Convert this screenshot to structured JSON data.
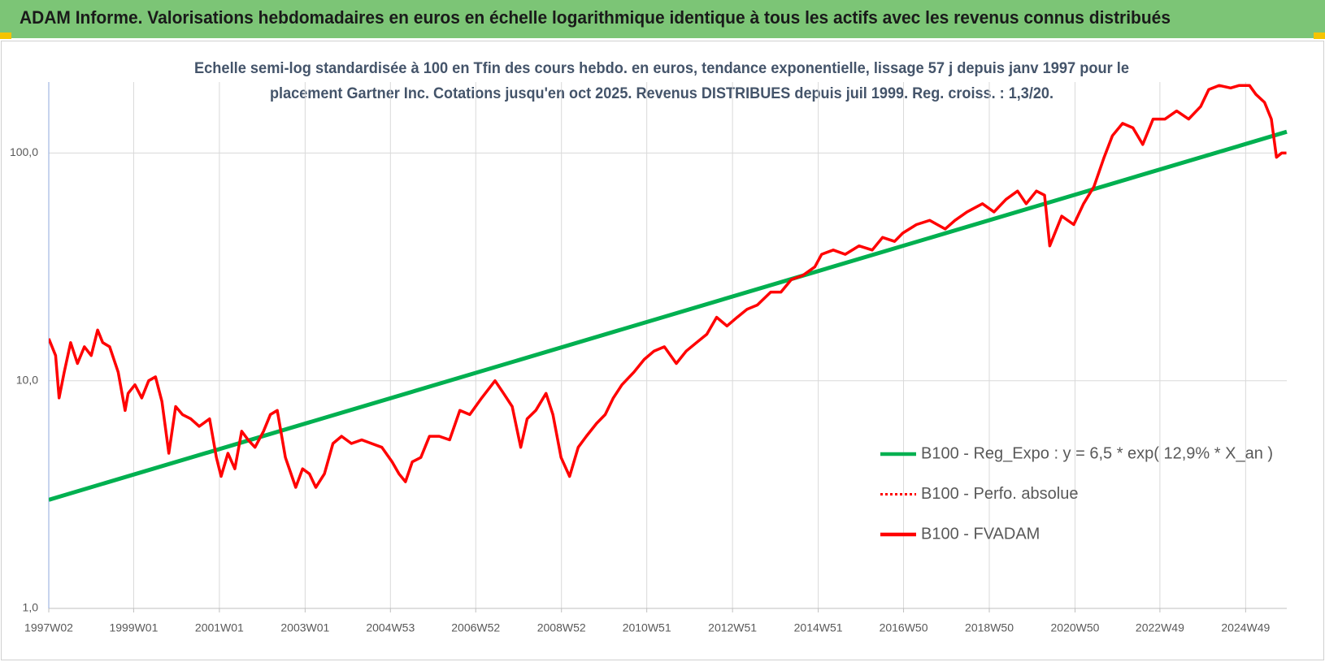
{
  "chart_data": {
    "type": "line",
    "title": "ADAM Informe. Valorisations hebdomadaires en euros en échelle logarithmique identique à tous les actifs avec les revenus connus distribués",
    "subtitle": [
      "Echelle semi-log standardisée à 100 en Tfin des cours hebdo. en euros, tendance exponentielle, lissage 57 j depuis janv 1997 pour le",
      "placement Gartner Inc.  Cotations jusqu'en oct 2025.  Revenus DISTRIBUES depuis juil 1999.  Reg. croiss. : 1,3/20."
    ],
    "yscale": "log",
    "ylim": [
      1,
      205
    ],
    "yticks": [
      {
        "value": 1,
        "label": "1,0"
      },
      {
        "value": 10,
        "label": "10,0"
      },
      {
        "value": 100,
        "label": "100,0"
      }
    ],
    "xlim": [
      1997.02,
      2025.9
    ],
    "xticks": [
      {
        "value": 1997.02,
        "label": "1997W02"
      },
      {
        "value": 1999.0,
        "label": "1999W01"
      },
      {
        "value": 2001.0,
        "label": "2001W01"
      },
      {
        "value": 2003.0,
        "label": "2003W01"
      },
      {
        "value": 2004.99,
        "label": "2004W53"
      },
      {
        "value": 2006.98,
        "label": "2006W52"
      },
      {
        "value": 2008.98,
        "label": "2008W52"
      },
      {
        "value": 2010.97,
        "label": "2010W51"
      },
      {
        "value": 2012.97,
        "label": "2012W51"
      },
      {
        "value": 2014.97,
        "label": "2014W51"
      },
      {
        "value": 2016.96,
        "label": "2016W50"
      },
      {
        "value": 2018.96,
        "label": "2018W50"
      },
      {
        "value": 2020.96,
        "label": "2020W50"
      },
      {
        "value": 2022.94,
        "label": "2022W49"
      },
      {
        "value": 2024.94,
        "label": "2024W49"
      }
    ],
    "grid": true,
    "legend": "lower right",
    "series": [
      {
        "name": "B100 - Reg_Expo : y = 6,5 * exp( 12,9% *  X_an )",
        "color": "#00b050",
        "style": "solid",
        "x": [
          1997.02,
          2025.9
        ],
        "values": [
          3.0,
          124
        ]
      },
      {
        "name": "B100 - Perfo. absolue",
        "color": "#ff0000",
        "style": "dotted"
      },
      {
        "name": "B100 - FVADAM",
        "color": "#ff0000",
        "style": "solid",
        "x": [
          1997.02,
          1997.18,
          1997.26,
          1997.38,
          1997.53,
          1997.69,
          1997.85,
          1998.01,
          1998.16,
          1998.28,
          1998.44,
          1998.64,
          1998.8,
          1998.87,
          1999.03,
          1999.19,
          1999.35,
          1999.51,
          1999.66,
          1999.82,
          1999.98,
          2000.14,
          2000.33,
          2000.53,
          2000.77,
          2000.93,
          2001.04,
          2001.2,
          2001.36,
          2001.52,
          2001.67,
          2001.83,
          2002.03,
          2002.19,
          2002.35,
          2002.54,
          2002.78,
          2002.94,
          2003.1,
          2003.25,
          2003.45,
          2003.65,
          2003.85,
          2004.08,
          2004.32,
          2004.55,
          2004.79,
          2005.03,
          2005.19,
          2005.34,
          2005.5,
          2005.7,
          2005.9,
          2006.13,
          2006.37,
          2006.61,
          2006.84,
          2007.12,
          2007.43,
          2007.63,
          2007.83,
          2008.03,
          2008.18,
          2008.38,
          2008.62,
          2008.78,
          2008.97,
          2009.17,
          2009.37,
          2009.56,
          2009.8,
          2010.0,
          2010.19,
          2010.39,
          2010.67,
          2010.91,
          2011.14,
          2011.38,
          2011.66,
          2011.89,
          2012.13,
          2012.37,
          2012.6,
          2012.84,
          2013.08,
          2013.31,
          2013.55,
          2013.86,
          2014.1,
          2014.34,
          2014.61,
          2014.89,
          2015.05,
          2015.32,
          2015.6,
          2015.92,
          2016.23,
          2016.47,
          2016.75,
          2016.94,
          2017.26,
          2017.57,
          2017.93,
          2018.16,
          2018.44,
          2018.8,
          2019.07,
          2019.35,
          2019.62,
          2019.82,
          2020.06,
          2020.25,
          2020.37,
          2020.65,
          2020.93,
          2021.16,
          2021.4,
          2021.64,
          2021.83,
          2022.07,
          2022.31,
          2022.54,
          2022.78,
          2023.06,
          2023.33,
          2023.61,
          2023.89,
          2024.08,
          2024.32,
          2024.59,
          2024.79,
          2025.03,
          2025.18,
          2025.38,
          2025.54,
          2025.66,
          2025.78,
          2025.89
        ],
        "values": [
          15.3,
          12.9,
          8.4,
          10.9,
          14.7,
          11.9,
          14.1,
          12.9,
          16.7,
          14.7,
          14.1,
          10.9,
          7.4,
          8.8,
          9.6,
          8.4,
          10.0,
          10.4,
          8.1,
          4.8,
          7.7,
          7.1,
          6.8,
          6.3,
          6.8,
          4.6,
          3.8,
          4.8,
          4.1,
          6.0,
          5.5,
          5.1,
          6.0,
          7.1,
          7.4,
          4.6,
          3.4,
          4.1,
          3.9,
          3.4,
          3.9,
          5.3,
          5.7,
          5.3,
          5.5,
          5.3,
          5.1,
          4.4,
          3.9,
          3.6,
          4.4,
          4.6,
          5.7,
          5.7,
          5.5,
          7.4,
          7.1,
          8.4,
          10.0,
          8.8,
          7.7,
          5.1,
          6.8,
          7.4,
          8.8,
          7.1,
          4.6,
          3.8,
          5.1,
          5.7,
          6.5,
          7.1,
          8.4,
          9.6,
          10.9,
          12.4,
          13.5,
          14.1,
          11.9,
          13.5,
          14.7,
          16.0,
          19.0,
          17.4,
          19.0,
          20.6,
          21.5,
          24.5,
          24.5,
          27.8,
          29.0,
          31.6,
          35.9,
          37.5,
          35.9,
          39.1,
          37.5,
          42.6,
          40.9,
          44.5,
          48.5,
          50.6,
          46.4,
          50.6,
          55.1,
          59.9,
          55.1,
          62.6,
          68.1,
          59.9,
          68.1,
          65.3,
          39.1,
          52.8,
          48.5,
          59.9,
          71.1,
          95.8,
          119,
          135,
          129,
          109,
          141,
          141,
          153,
          141,
          160,
          190,
          198,
          193,
          198,
          198,
          181,
          167,
          141,
          95.8,
          100,
          100
        ]
      }
    ]
  }
}
